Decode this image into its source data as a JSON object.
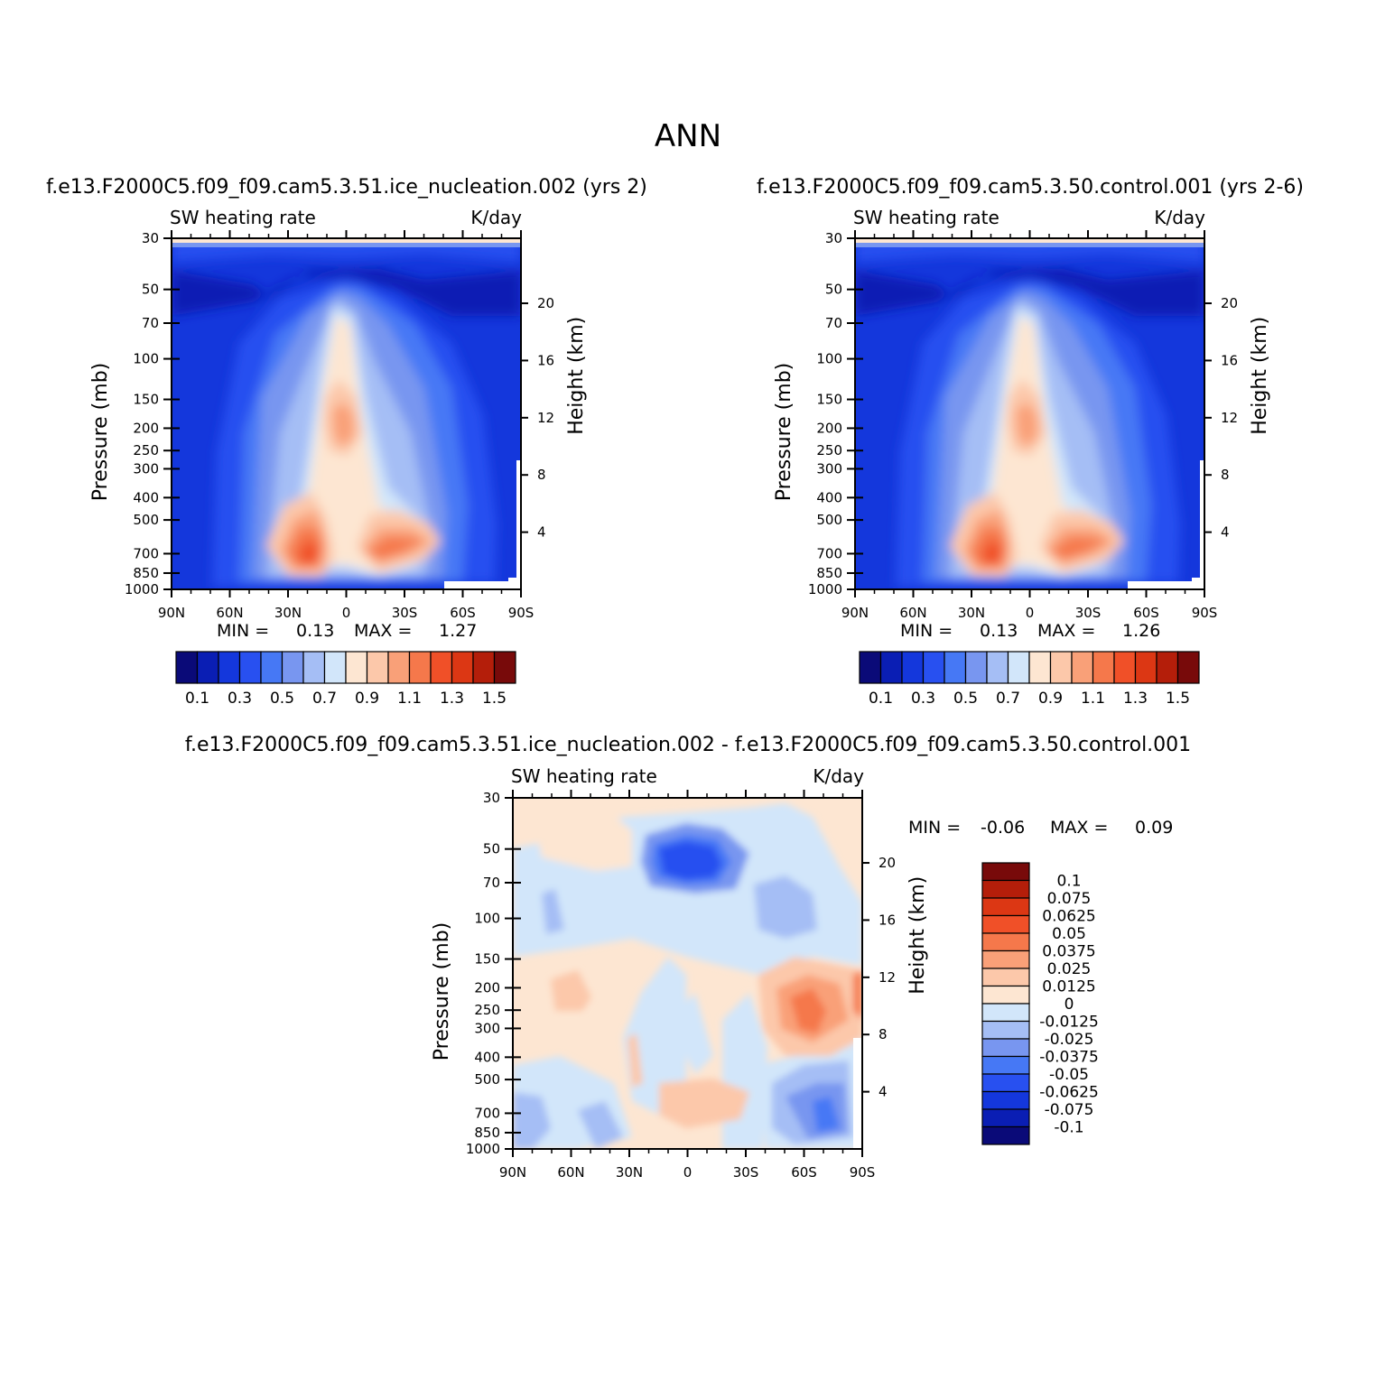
{
  "figure": {
    "title": "ANN",
    "palette": [
      "#0a0a78",
      "#0a1eb4",
      "#1437dc",
      "#2850f0",
      "#4678f5",
      "#7896f0",
      "#a5bef5",
      "#d2e6fa",
      "#fde6d2",
      "#fcc8aa",
      "#f9a078",
      "#f5784b",
      "#f05028",
      "#dc3714",
      "#b41e0a",
      "#780a0a"
    ],
    "diff_palette": [
      "#0a0a78",
      "#0a1eb4",
      "#1437dc",
      "#2850f0",
      "#4678f5",
      "#7896f0",
      "#a5bef5",
      "#d2e6fa",
      "#fde6d2",
      "#fcc8aa",
      "#f9a078",
      "#f5784b",
      "#f05028",
      "#dc3714",
      "#b41e0a",
      "#780a0a"
    ]
  },
  "chart_data": [
    {
      "type": "heatmap",
      "case_title": "f.e13.F2000C5.f09_f09.cam5.3.51.ice_nucleation.002 (yrs 2)",
      "variable": "SW heating rate",
      "units": "K/day",
      "ylabel": "Pressure (mb)",
      "ylabel_right": "Height (km)",
      "x_ticks": [
        "90N",
        "60N",
        "30N",
        "0",
        "30S",
        "60S",
        "90S"
      ],
      "y_ticks": [
        30,
        50,
        70,
        100,
        150,
        200,
        250,
        300,
        400,
        500,
        700,
        850,
        1000
      ],
      "height_ticks": [
        20,
        16,
        12,
        8,
        4
      ],
      "min_label": "MIN =",
      "min": "0.13",
      "max_label": "MAX =",
      "max": "1.27",
      "colorbar_labels": [
        "0.1",
        "0.3",
        "0.5",
        "0.7",
        "0.9",
        "1.1",
        "1.3",
        "1.5"
      ]
    },
    {
      "type": "heatmap",
      "case_title": "f.e13.F2000C5.f09_f09.cam5.3.50.control.001 (yrs 2-6)",
      "variable": "SW heating rate",
      "units": "K/day",
      "ylabel": "Pressure (mb)",
      "ylabel_right": "Height (km)",
      "x_ticks": [
        "90N",
        "60N",
        "30N",
        "0",
        "30S",
        "60S",
        "90S"
      ],
      "y_ticks": [
        30,
        50,
        70,
        100,
        150,
        200,
        250,
        300,
        400,
        500,
        700,
        850,
        1000
      ],
      "height_ticks": [
        20,
        16,
        12,
        8,
        4
      ],
      "min_label": "MIN =",
      "min": "0.13",
      "max_label": "MAX =",
      "max": "1.26",
      "colorbar_labels": [
        "0.1",
        "0.3",
        "0.5",
        "0.7",
        "0.9",
        "1.1",
        "1.3",
        "1.5"
      ]
    },
    {
      "type": "heatmap",
      "case_title": "f.e13.F2000C5.f09_f09.cam5.3.51.ice_nucleation.002 - f.e13.F2000C5.f09_f09.cam5.3.50.control.001",
      "variable": "SW heating rate",
      "units": "K/day",
      "ylabel": "Pressure (mb)",
      "ylabel_right": "Height (km)",
      "x_ticks": [
        "90N",
        "60N",
        "30N",
        "0",
        "30S",
        "60S",
        "90S"
      ],
      "y_ticks": [
        30,
        50,
        70,
        100,
        150,
        200,
        250,
        300,
        400,
        500,
        700,
        850,
        1000
      ],
      "height_ticks": [
        20,
        16,
        12,
        8,
        4
      ],
      "min_label": "MIN =",
      "min": "-0.06",
      "max_label": "MAX =",
      "max": "0.09",
      "colorbar_labels": [
        "0.1",
        "0.075",
        "0.0625",
        "0.05",
        "0.0375",
        "0.025",
        "0.0125",
        "0",
        "-0.0125",
        "-0.025",
        "-0.0375",
        "-0.05",
        "-0.0625",
        "-0.075",
        "-0.1"
      ]
    }
  ]
}
